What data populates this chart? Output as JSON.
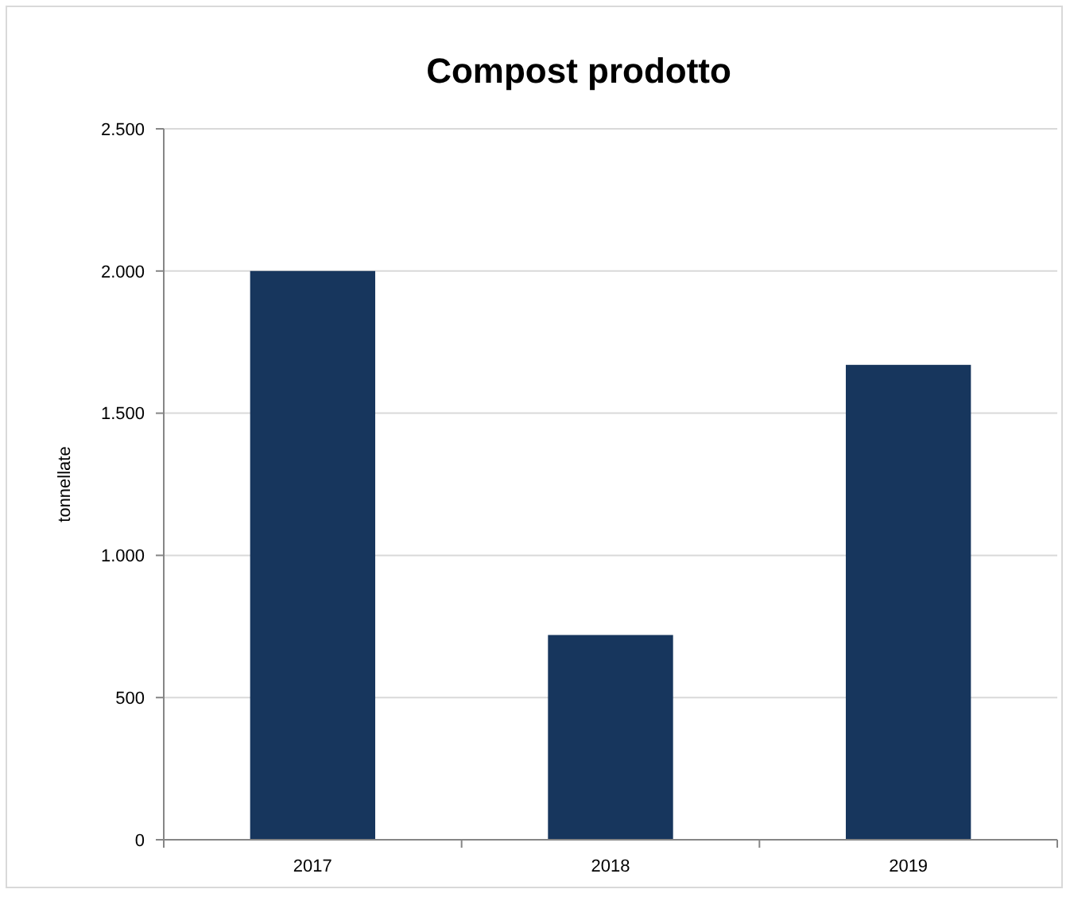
{
  "chart_data": {
    "type": "bar",
    "title": "Compost prodotto",
    "ylabel": "tonnellate",
    "categories": [
      "2017",
      "2018",
      "2019"
    ],
    "values": [
      2000,
      720,
      1670
    ],
    "color": "#17365d",
    "ylim": [
      0,
      2500
    ],
    "yticks": [
      {
        "value": 0,
        "label": "0"
      },
      {
        "value": 500,
        "label": "500"
      },
      {
        "value": 1000,
        "label": "1.000"
      },
      {
        "value": 1500,
        "label": "1.500"
      },
      {
        "value": 2000,
        "label": "2.000"
      },
      {
        "value": 2500,
        "label": "2.500"
      }
    ],
    "grid": "y"
  }
}
